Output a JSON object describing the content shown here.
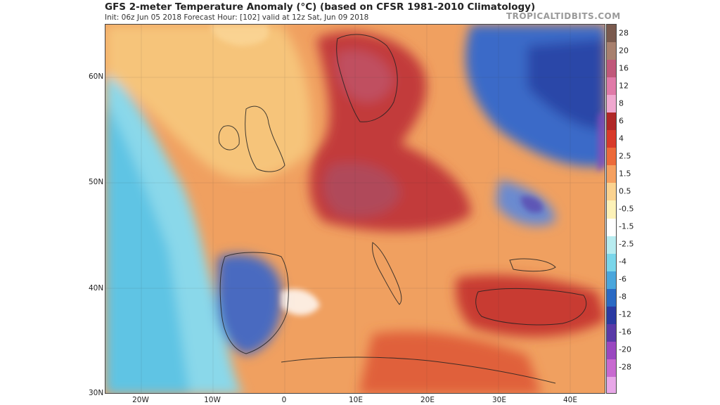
{
  "header": {
    "title": "GFS 2-meter Temperature Anomaly (°C) (based on CFSR 1981-2010 Climatology)",
    "subtitle": "Init: 06z Jun 05 2018   Forecast Hour: [102]   valid at 12z Sat, Jun 09 2018",
    "brand": "TROPICALTIDBITS.COM"
  },
  "map": {
    "latitude_labels": [
      "60N",
      "50N",
      "40N",
      "30N"
    ],
    "longitude_labels": [
      "20W",
      "10W",
      "0",
      "10E",
      "20E",
      "30E",
      "40E"
    ]
  },
  "colorbar": {
    "labels": [
      "28",
      "20",
      "16",
      "12",
      "8",
      "6",
      "4",
      "2.5",
      "1.5",
      "0.5",
      "-0.5",
      "-1.5",
      "-2.5",
      "-4",
      "-6",
      "-8",
      "-12",
      "-16",
      "-20",
      "-28"
    ],
    "colors": [
      "#7a5a4e",
      "#a8806e",
      "#c0587a",
      "#e07aa8",
      "#f0a8cf",
      "#b02828",
      "#d83a2a",
      "#ec6a3a",
      "#f5a060",
      "#fbd390",
      "#fdf2b8",
      "#ffffff",
      "#b8ecf0",
      "#7ad6ea",
      "#4aa6dc",
      "#2a6ac4",
      "#2a3aa2",
      "#5a3aa8",
      "#9a48c0",
      "#c86ad0",
      "#e8a8e8"
    ]
  }
}
